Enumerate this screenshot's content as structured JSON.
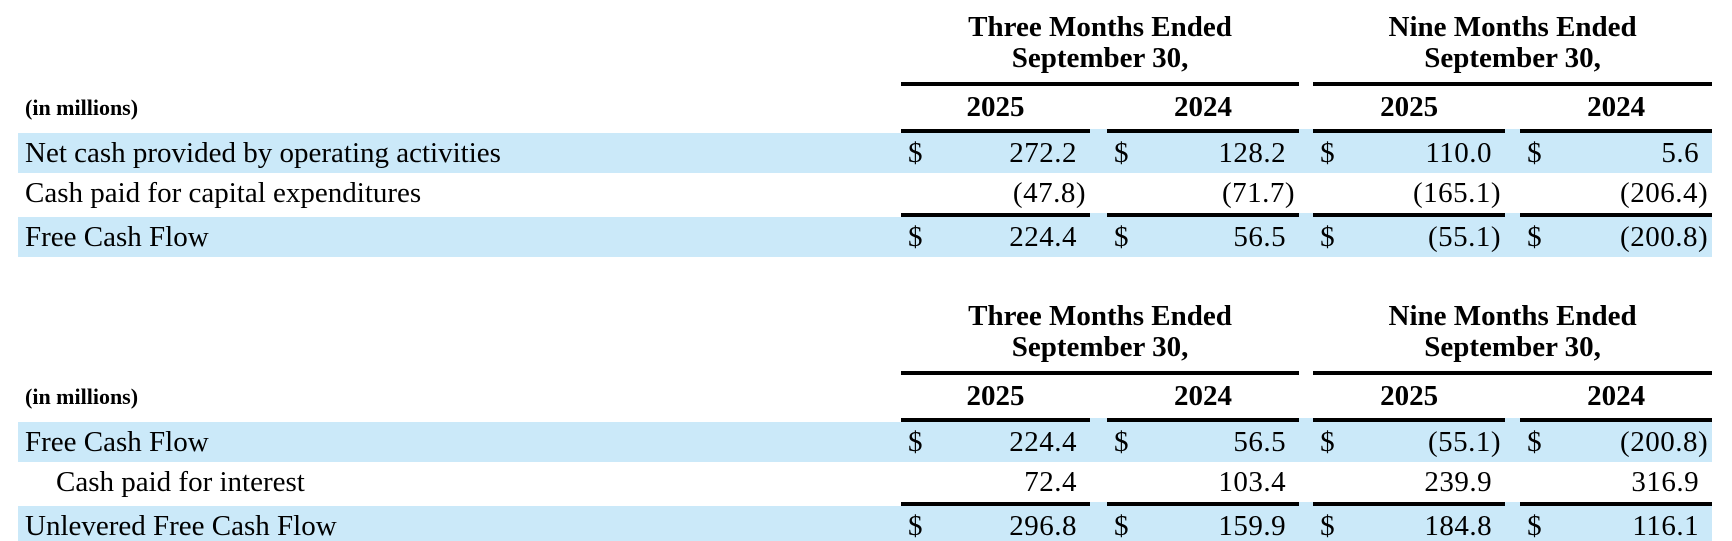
{
  "currency_symbol": "$",
  "colors": {
    "highlight_row": "#CBE9F9",
    "rule": "#000000",
    "text": "#000000",
    "background": "#FFFFFF"
  },
  "tables": [
    {
      "units_label": "(in millions)",
      "column_groups": [
        {
          "title_line1": "Three Months Ended",
          "title_line2": "September 30,",
          "years": [
            "2025",
            "2024"
          ]
        },
        {
          "title_line1": "Nine Months Ended",
          "title_line2": "September 30,",
          "years": [
            "2025",
            "2024"
          ]
        }
      ],
      "rows": [
        {
          "label": "Net cash provided by operating activities",
          "indent": false,
          "highlight": true,
          "show_currency": true,
          "rule_above": true,
          "values": [
            "272.2",
            "128.2",
            "110.0",
            "5.6"
          ]
        },
        {
          "label": "Cash paid for capital expenditures",
          "indent": false,
          "highlight": false,
          "show_currency": false,
          "rule_above": false,
          "values": [
            "(47.8)",
            "(71.7)",
            "(165.1)",
            "(206.4)"
          ]
        },
        {
          "label": "Free Cash Flow",
          "indent": false,
          "highlight": true,
          "show_currency": true,
          "rule_above": true,
          "values": [
            "224.4",
            "56.5",
            "(55.1)",
            "(200.8)"
          ]
        }
      ]
    },
    {
      "units_label": "(in millions)",
      "column_groups": [
        {
          "title_line1": "Three Months Ended",
          "title_line2": "September 30,",
          "years": [
            "2025",
            "2024"
          ]
        },
        {
          "title_line1": "Nine Months Ended",
          "title_line2": "September 30,",
          "years": [
            "2025",
            "2024"
          ]
        }
      ],
      "rows": [
        {
          "label": "Free Cash Flow",
          "indent": false,
          "highlight": true,
          "show_currency": true,
          "rule_above": true,
          "values": [
            "224.4",
            "56.5",
            "(55.1)",
            "(200.8)"
          ]
        },
        {
          "label": "Cash paid for interest",
          "indent": true,
          "highlight": false,
          "show_currency": false,
          "rule_above": false,
          "values": [
            "72.4",
            "103.4",
            "239.9",
            "316.9"
          ]
        },
        {
          "label": "Unlevered Free Cash Flow",
          "indent": false,
          "highlight": true,
          "show_currency": true,
          "rule_above": true,
          "values": [
            "296.8",
            "159.9",
            "184.8",
            "116.1"
          ]
        }
      ]
    }
  ]
}
